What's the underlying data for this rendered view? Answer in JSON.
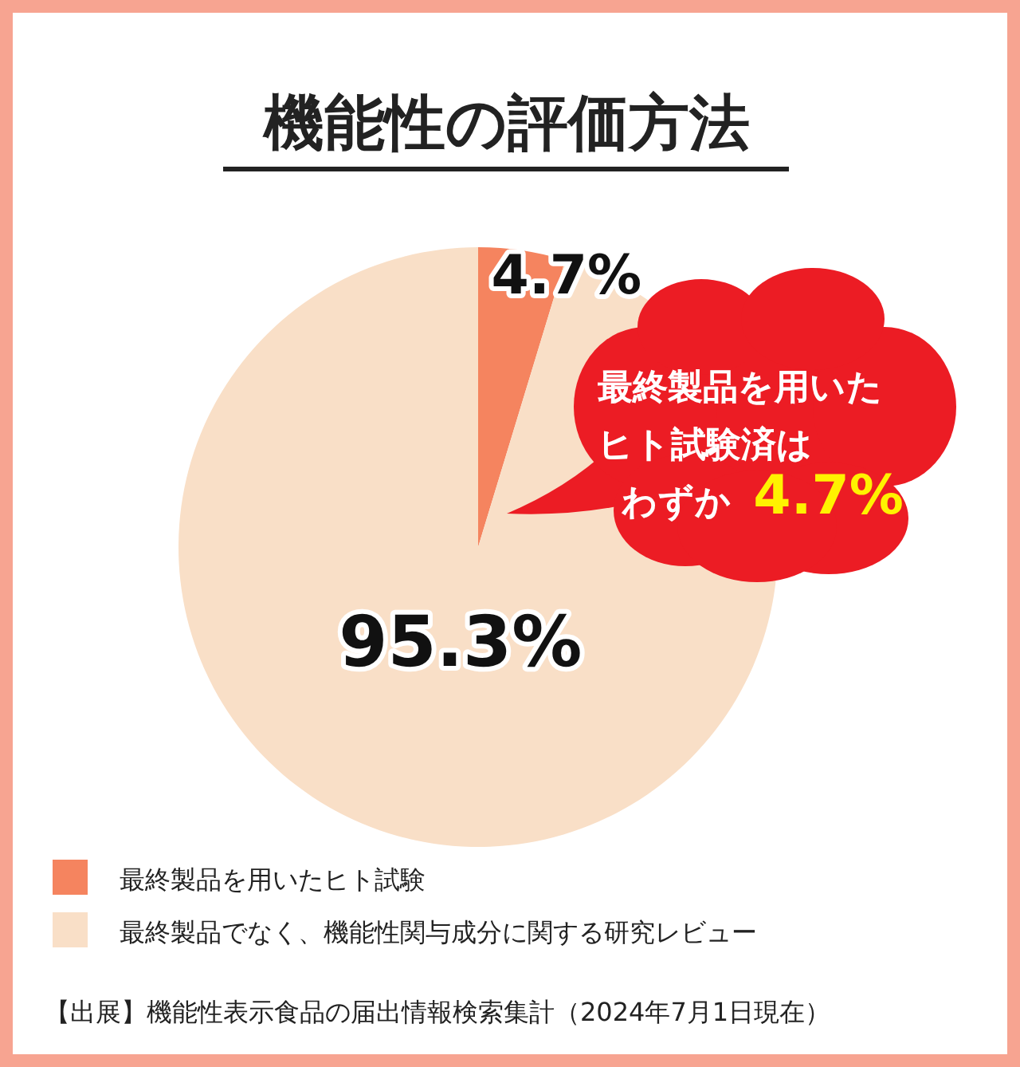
{
  "chart_data": {
    "type": "pie",
    "title": "機能性の評価方法",
    "categories": [
      "最終製品を用いたヒト試験",
      "最終製品でなく、機能性関与成分に関する研究レビュー"
    ],
    "values": [
      4.7,
      95.3
    ],
    "value_labels": [
      "4.7%",
      "95.3%"
    ],
    "colors": [
      "#f5845f",
      "#f9dfc7"
    ],
    "legend": "bottom",
    "annotations": [
      "最終製品を用いた",
      "ヒト試験済は",
      "わずか **4.7%**",
      "【出展】機能性表示食品の届出情報検索集計（2024年7月1日現在）"
    ]
  }
}
